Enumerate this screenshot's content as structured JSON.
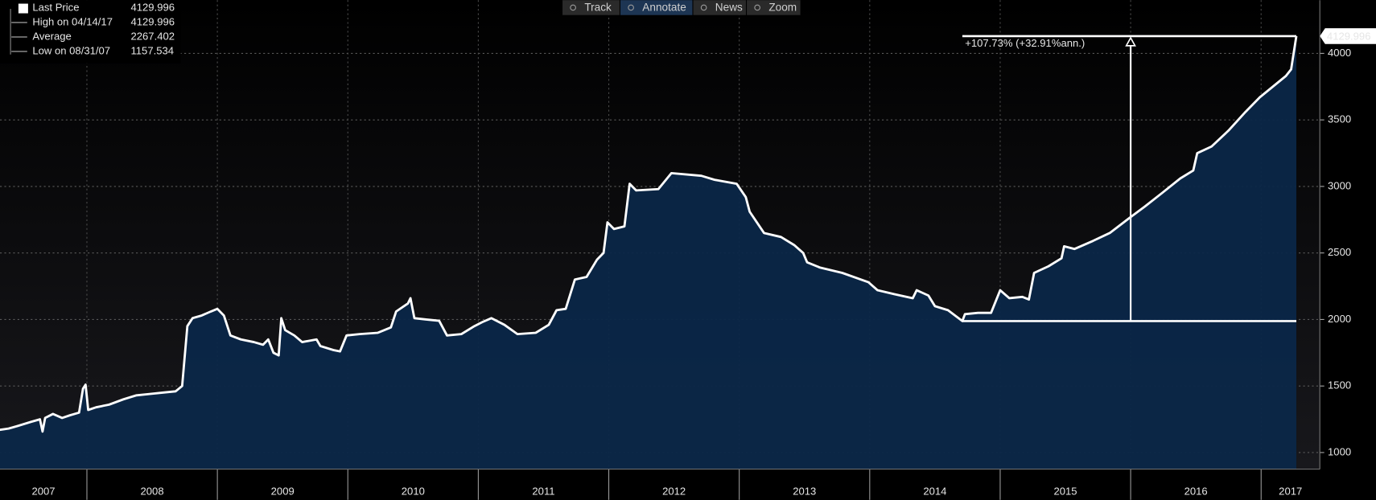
{
  "toolbar": [
    "Track",
    "Annotate",
    "News",
    "Zoom"
  ],
  "chart_data": {
    "type": "line",
    "legend": [
      {
        "label": "Last Price",
        "value": 4129.996
      },
      {
        "label": "High on 04/14/17",
        "value": 4129.996
      },
      {
        "label": "Average",
        "value": 2267.402
      },
      {
        "label": "Low on 08/31/07",
        "value": 1157.534
      }
    ],
    "x": [
      2007.33,
      2007.4,
      2007.47,
      2007.57,
      2007.64,
      2007.66,
      2007.68,
      2007.74,
      2007.81,
      2007.87,
      2007.94,
      2007.97,
      2007.99,
      2008.01,
      2008.07,
      2008.17,
      2008.28,
      2008.38,
      2008.48,
      2008.58,
      2008.68,
      2008.73,
      2008.77,
      2008.81,
      2008.88,
      2008.95,
      2009.0,
      2009.05,
      2009.1,
      2009.18,
      2009.28,
      2009.35,
      2009.39,
      2009.43,
      2009.47,
      2009.49,
      2009.52,
      2009.59,
      2009.65,
      2009.76,
      2009.79,
      2009.89,
      2009.94,
      2009.99,
      2010.09,
      2010.23,
      2010.33,
      2010.37,
      2010.46,
      2010.48,
      2010.51,
      2010.6,
      2010.7,
      2010.76,
      2010.87,
      2010.97,
      2011.03,
      2011.1,
      2011.2,
      2011.3,
      2011.44,
      2011.54,
      2011.6,
      2011.67,
      2011.74,
      2011.83,
      2011.91,
      2011.96,
      2011.99,
      2012.04,
      2012.12,
      2012.16,
      2012.21,
      2012.38,
      2012.48,
      2012.71,
      2012.81,
      2012.98,
      2013.05,
      2013.08,
      2013.19,
      2013.32,
      2013.42,
      2013.49,
      2013.52,
      2013.62,
      2013.79,
      2013.99,
      2014.06,
      2014.19,
      2014.33,
      2014.36,
      2014.45,
      2014.5,
      2014.6,
      2014.71,
      2014.73,
      2014.83,
      2014.93,
      2015.0,
      2015.07,
      2015.17,
      2015.22,
      2015.26,
      2015.37,
      2015.47,
      2015.49,
      2015.57,
      2015.71,
      2015.84,
      2016.0,
      2016.11,
      2016.24,
      2016.38,
      2016.48,
      2016.51,
      2016.62,
      2016.75,
      2016.88,
      2016.99,
      2017.09,
      2017.19,
      2017.23,
      2017.27
    ],
    "series": [
      {
        "name": "Last Price",
        "color": "#ffffff",
        "values": [
          1170,
          1180,
          1200,
          1230,
          1250,
          1157.534,
          1260,
          1290,
          1260,
          1280,
          1300,
          1480,
          1510,
          1320,
          1340,
          1360,
          1400,
          1430,
          1440,
          1450,
          1460,
          1500,
          1950,
          2010,
          2030,
          2060,
          2080,
          2030,
          1880,
          1850,
          1830,
          1810,
          1850,
          1750,
          1730,
          2010,
          1920,
          1880,
          1830,
          1850,
          1800,
          1770,
          1760,
          1880,
          1890,
          1900,
          1940,
          2060,
          2120,
          2160,
          2010,
          2000,
          1990,
          1880,
          1890,
          1950,
          1980,
          2010,
          1960,
          1890,
          1900,
          1960,
          2070,
          2080,
          2300,
          2320,
          2450,
          2500,
          2730,
          2680,
          2700,
          3020,
          2970,
          2980,
          3100,
          3080,
          3050,
          3020,
          2920,
          2810,
          2650,
          2620,
          2560,
          2500,
          2430,
          2390,
          2350,
          2280,
          2220,
          2190,
          2160,
          2220,
          2180,
          2100,
          2070,
          1988,
          2040,
          2050,
          2050,
          2220,
          2160,
          2170,
          2150,
          2350,
          2400,
          2460,
          2550,
          2530,
          2590,
          2650,
          2770,
          2850,
          2950,
          3060,
          3120,
          3250,
          3300,
          3420,
          3560,
          3670,
          3750,
          3830,
          3880,
          4129.996
        ]
      }
    ],
    "xlim": [
      2007.334,
      2017.45
    ],
    "xticks": [
      2007,
      2008,
      2009,
      2010,
      2011,
      2012,
      2013,
      2014,
      2015,
      2016,
      2017
    ],
    "ylim": [
      875,
      4400
    ],
    "yticks": [
      1000,
      1500,
      2000,
      2500,
      3000,
      3500,
      4000
    ],
    "grid": true,
    "area_color": "#0b2748",
    "annotation": {
      "text": "+107.73% (+32.91%ann.)",
      "x": [
        2014.71,
        2017.27
      ],
      "y": [
        1988,
        4129.996
      ],
      "arrow_x": 2016.0
    }
  }
}
